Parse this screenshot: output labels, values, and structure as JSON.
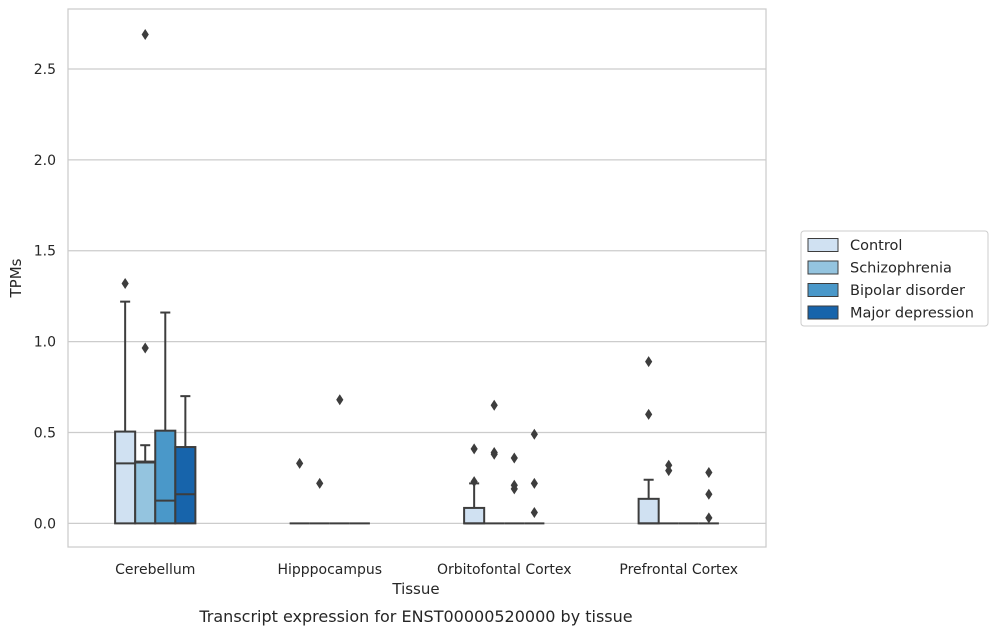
{
  "caption": "Transcript expression for ENST00000520000 by tissue",
  "chart_data": {
    "type": "box",
    "xlabel": "Tissue",
    "ylabel": "TPMs",
    "ylim": [
      -0.13,
      2.83
    ],
    "yticks": [
      "0.0",
      "0.5",
      "1.0",
      "1.5",
      "2.0",
      "2.5"
    ],
    "grid": "horizontal",
    "legend_position": "right",
    "categories": [
      "Cerebellum",
      "Hipppocampus",
      "Orbitofontal Cortex",
      "Prefrontal Cortex"
    ],
    "colors": {
      "Control": "#d0e1f2",
      "Schizophrenia": "#94c4df",
      "Bipolar disorder": "#4a98c9",
      "Major depression": "#1764ab"
    },
    "series": [
      {
        "name": "Control",
        "boxes": [
          {
            "q1": 0,
            "median": 0.33,
            "q3": 0.505,
            "whislo": 0,
            "whishi": 1.22,
            "fliers": [
              1.32
            ]
          },
          {
            "q1": 0,
            "median": 0,
            "q3": 0,
            "whislo": 0,
            "whishi": 0,
            "fliers": [
              0.33
            ]
          },
          {
            "q1": 0,
            "median": 0,
            "q3": 0.085,
            "whislo": 0,
            "whishi": 0.22,
            "fliers": [
              0.41,
              0.23
            ]
          },
          {
            "q1": 0,
            "median": 0,
            "q3": 0.135,
            "whislo": 0,
            "whishi": 0.24,
            "fliers": [
              0.89,
              0.6
            ]
          }
        ]
      },
      {
        "name": "Schizophrenia",
        "boxes": [
          {
            "q1": 0,
            "median": 0.335,
            "q3": 0.34,
            "whislo": 0,
            "whishi": 0.43,
            "fliers": [
              2.69,
              0.965
            ]
          },
          {
            "q1": 0,
            "median": 0,
            "q3": 0,
            "whislo": 0,
            "whishi": 0,
            "fliers": [
              0.22
            ]
          },
          {
            "q1": 0,
            "median": 0,
            "q3": 0,
            "whislo": 0,
            "whishi": 0,
            "fliers": [
              0.65,
              0.39,
              0.38
            ]
          },
          {
            "q1": 0,
            "median": 0,
            "q3": 0,
            "whislo": 0,
            "whishi": 0,
            "fliers": [
              0.32,
              0.29
            ]
          }
        ]
      },
      {
        "name": "Bipolar disorder",
        "boxes": [
          {
            "q1": 0,
            "median": 0.125,
            "q3": 0.51,
            "whislo": 0,
            "whishi": 1.16,
            "fliers": []
          },
          {
            "q1": 0,
            "median": 0,
            "q3": 0,
            "whislo": 0,
            "whishi": 0,
            "fliers": [
              0.68
            ]
          },
          {
            "q1": 0,
            "median": 0,
            "q3": 0,
            "whislo": 0,
            "whishi": 0,
            "fliers": [
              0.36,
              0.21,
              0.19
            ]
          },
          {
            "q1": 0,
            "median": 0,
            "q3": 0,
            "whislo": 0,
            "whishi": 0,
            "fliers": []
          }
        ]
      },
      {
        "name": "Major depression",
        "boxes": [
          {
            "q1": 0,
            "median": 0.16,
            "q3": 0.42,
            "whislo": 0,
            "whishi": 0.7,
            "fliers": []
          },
          {
            "q1": 0,
            "median": 0,
            "q3": 0,
            "whislo": 0,
            "whishi": 0,
            "fliers": []
          },
          {
            "q1": 0,
            "median": 0,
            "q3": 0,
            "whislo": 0,
            "whishi": 0,
            "fliers": [
              0.49,
              0.22,
              0.06
            ]
          },
          {
            "q1": 0,
            "median": 0,
            "q3": 0,
            "whislo": 0,
            "whishi": 0,
            "fliers": [
              0.28,
              0.16,
              0.03
            ]
          }
        ]
      }
    ]
  }
}
